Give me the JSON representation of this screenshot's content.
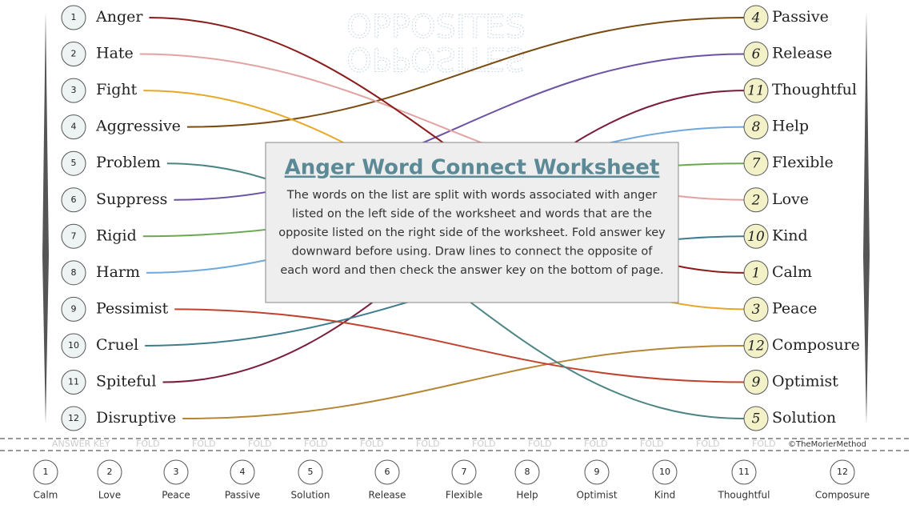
{
  "watermark": "OPPOSITES",
  "left": [
    {
      "number": 1,
      "word": "Anger"
    },
    {
      "number": 2,
      "word": "Hate"
    },
    {
      "number": 3,
      "word": "Fight"
    },
    {
      "number": 4,
      "word": "Aggressive"
    },
    {
      "number": 5,
      "word": "Problem"
    },
    {
      "number": 6,
      "word": "Suppress"
    },
    {
      "number": 7,
      "word": "Rigid"
    },
    {
      "number": 8,
      "word": "Harm"
    },
    {
      "number": 9,
      "word": "Pessimist"
    },
    {
      "number": 10,
      "word": "Cruel"
    },
    {
      "number": 11,
      "word": "Spiteful"
    },
    {
      "number": 12,
      "word": "Disruptive"
    }
  ],
  "right": [
    {
      "number": 4,
      "word": "Passive"
    },
    {
      "number": 6,
      "word": "Release"
    },
    {
      "number": 11,
      "word": "Thoughtful"
    },
    {
      "number": 8,
      "word": "Help"
    },
    {
      "number": 7,
      "word": "Flexible"
    },
    {
      "number": 2,
      "word": "Love"
    },
    {
      "number": 10,
      "word": "Kind"
    },
    {
      "number": 1,
      "word": "Calm"
    },
    {
      "number": 3,
      "word": "Peace"
    },
    {
      "number": 12,
      "word": "Composure"
    },
    {
      "number": 9,
      "word": "Optimist"
    },
    {
      "number": 5,
      "word": "Solution"
    }
  ],
  "worksheet": {
    "title": "Anger Word Connect Worksheet",
    "lines": [
      "The words on the list are split with words associated with anger",
      "listed on the left side of the worksheet and words that are the",
      "opposite listed on the right side of the worksheet. Fold answer key",
      "downward before using.  Draw lines to connect the opposite of",
      "each word and then check the answer key on the bottom of page."
    ]
  },
  "fold": {
    "answer_key": "ANSWER KEY",
    "fold": "FOLD",
    "credit": "©TheMorlerMethod"
  },
  "answer_key": [
    {
      "number": 1,
      "word": "Calm"
    },
    {
      "number": 2,
      "word": "Love"
    },
    {
      "number": 3,
      "word": "Peace"
    },
    {
      "number": 4,
      "word": "Passive"
    },
    {
      "number": 5,
      "word": "Solution"
    },
    {
      "number": 6,
      "word": "Release"
    },
    {
      "number": 7,
      "word": "Flexible"
    },
    {
      "number": 8,
      "word": "Help"
    },
    {
      "number": 9,
      "word": "Optimist"
    },
    {
      "number": 10,
      "word": "Kind"
    },
    {
      "number": 11,
      "word": "Thoughtful"
    },
    {
      "number": 12,
      "word": "Composure"
    }
  ]
}
